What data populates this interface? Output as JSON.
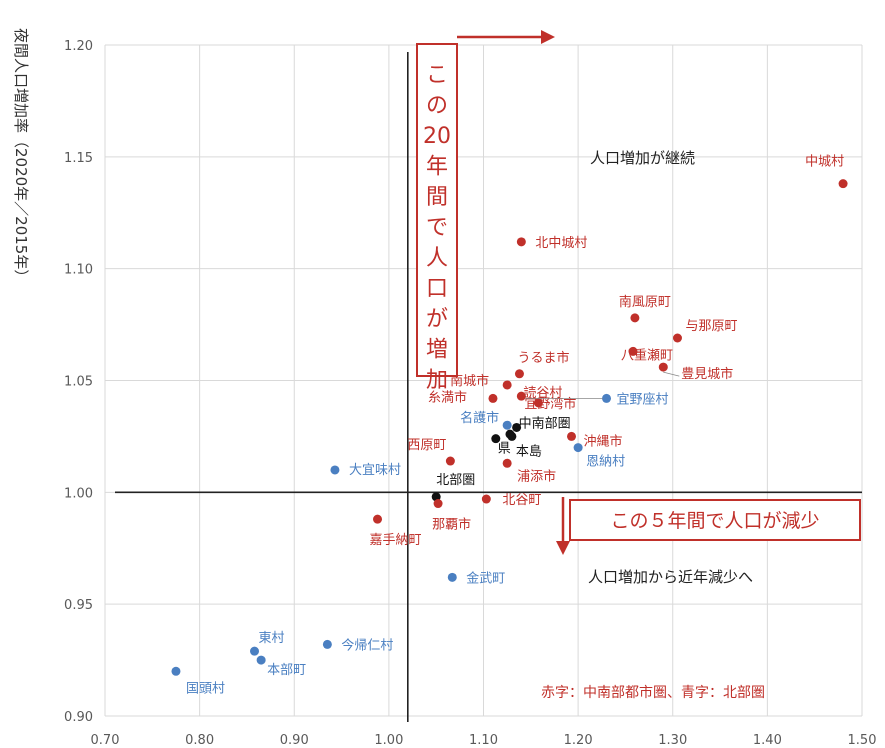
{
  "chart_data": {
    "type": "scatter",
    "ylabel": "夜間人口増加率（2020年／2015年）",
    "xlim": [
      0.7,
      1.5
    ],
    "ylim": [
      0.9,
      1.2
    ],
    "x_ticks": [
      "0.70",
      "0.80",
      "0.90",
      "1.00",
      "1.10",
      "1.20",
      "1.30",
      "1.40",
      "1.50"
    ],
    "y_ticks": [
      "0.90",
      "0.95",
      "1.00",
      "1.05",
      "1.10",
      "1.15",
      "1.20"
    ],
    "grid": true,
    "colors": {
      "red": "#c0302a",
      "blue": "#4a7fc1",
      "black": "#111111"
    },
    "points": [
      {
        "label": "中城村",
        "x": 1.48,
        "y": 1.138,
        "color": "red"
      },
      {
        "label": "北中城村",
        "x": 1.14,
        "y": 1.112,
        "color": "red"
      },
      {
        "label": "南風原町",
        "x": 1.26,
        "y": 1.078,
        "color": "red"
      },
      {
        "label": "与那原町",
        "x": 1.305,
        "y": 1.069,
        "color": "red"
      },
      {
        "label": "八重瀬町",
        "x": 1.258,
        "y": 1.063,
        "color": "red"
      },
      {
        "label": "豊見城市",
        "x": 1.29,
        "y": 1.056,
        "color": "red"
      },
      {
        "label": "うるま市",
        "x": 1.138,
        "y": 1.053,
        "color": "red"
      },
      {
        "label": "南城市",
        "x": 1.125,
        "y": 1.048,
        "color": "red"
      },
      {
        "label": "読谷村",
        "x": 1.14,
        "y": 1.043,
        "color": "red"
      },
      {
        "label": "糸満市",
        "x": 1.11,
        "y": 1.042,
        "color": "red"
      },
      {
        "label": "宜野湾市",
        "x": 1.158,
        "y": 1.04,
        "color": "red"
      },
      {
        "label": "宜野座村",
        "x": 1.23,
        "y": 1.042,
        "color": "blue"
      },
      {
        "label": "名護市",
        "x": 1.125,
        "y": 1.03,
        "color": "blue"
      },
      {
        "label": "中南部圏",
        "x": 1.135,
        "y": 1.029,
        "color": "black"
      },
      {
        "label": "",
        "x": 1.128,
        "y": 1.026,
        "color": "black"
      },
      {
        "label": "本島",
        "x": 1.13,
        "y": 1.025,
        "color": "black"
      },
      {
        "label": "県",
        "x": 1.113,
        "y": 1.024,
        "color": "black"
      },
      {
        "label": "沖縄市",
        "x": 1.193,
        "y": 1.025,
        "color": "red"
      },
      {
        "label": "恩納村",
        "x": 1.2,
        "y": 1.02,
        "color": "blue"
      },
      {
        "label": "西原町",
        "x": 1.065,
        "y": 1.014,
        "color": "red"
      },
      {
        "label": "浦添市",
        "x": 1.125,
        "y": 1.013,
        "color": "red"
      },
      {
        "label": "大宜味村",
        "x": 0.943,
        "y": 1.01,
        "color": "blue"
      },
      {
        "label": "北部圏",
        "x": 1.05,
        "y": 0.998,
        "color": "black"
      },
      {
        "label": "北谷町",
        "x": 1.103,
        "y": 0.997,
        "color": "red"
      },
      {
        "label": "那覇市",
        "x": 1.052,
        "y": 0.995,
        "color": "red"
      },
      {
        "label": "嘉手納町",
        "x": 0.988,
        "y": 0.988,
        "color": "red"
      },
      {
        "label": "金武町",
        "x": 1.067,
        "y": 0.962,
        "color": "blue"
      },
      {
        "label": "今帰仁村",
        "x": 0.935,
        "y": 0.932,
        "color": "blue"
      },
      {
        "label": "東村",
        "x": 0.858,
        "y": 0.929,
        "color": "blue"
      },
      {
        "label": "本部町",
        "x": 0.865,
        "y": 0.925,
        "color": "blue"
      },
      {
        "label": "国頭村",
        "x": 0.775,
        "y": 0.92,
        "color": "blue"
      }
    ],
    "annotations": {
      "top_right": "人口増加が継続",
      "bottom_right": "人口増加から近年減少へ",
      "vertical_box": "この20年間で人口が増加",
      "horizontal_box": "この５年間で人口が減少",
      "legend_note": "赤字：中南部都市圏、青字：北部圏"
    }
  }
}
